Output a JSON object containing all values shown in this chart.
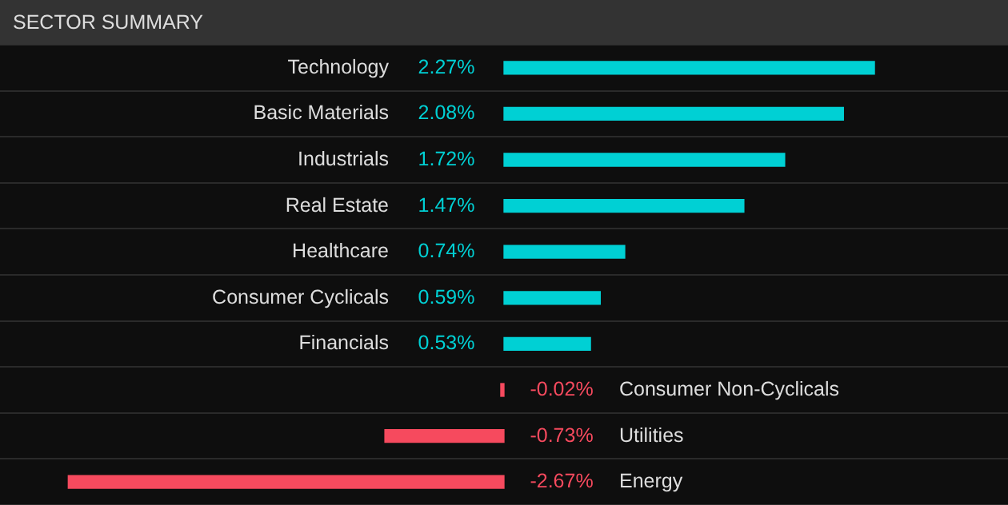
{
  "chart_data": {
    "type": "bar",
    "orientation": "horizontal",
    "title": "SECTOR SUMMARY",
    "categories": [
      "Technology",
      "Basic Materials",
      "Industrials",
      "Real Estate",
      "Healthcare",
      "Consumer Cyclicals",
      "Financials",
      "Consumer Non-Cyclicals",
      "Utilities",
      "Energy"
    ],
    "values": [
      2.27,
      2.08,
      1.72,
      1.47,
      0.74,
      0.59,
      0.53,
      -0.02,
      -0.73,
      -2.67
    ],
    "value_labels": [
      "2.27%",
      "2.08%",
      "1.72%",
      "1.47%",
      "0.74%",
      "0.59%",
      "0.53%",
      "-0.02%",
      "-0.73%",
      "-2.67%"
    ],
    "colors": [
      "#00d0d4",
      "#00d0d4",
      "#00d0d4",
      "#00d0d4",
      "#00d0d4",
      "#00d0d4",
      "#00d0d4",
      "#f64a5e",
      "#f64a5e",
      "#f64a5e"
    ],
    "grid": "y",
    "legend": false
  }
}
